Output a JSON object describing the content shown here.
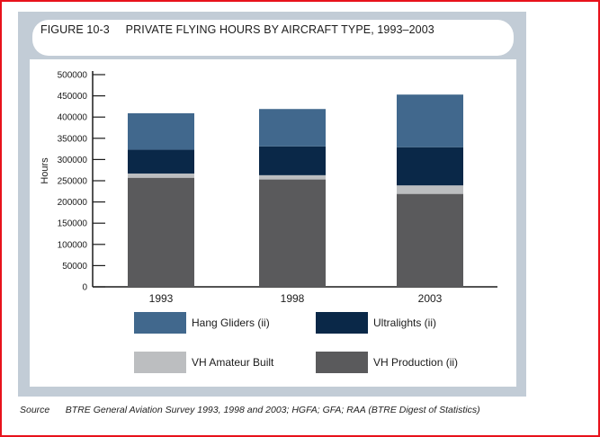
{
  "title": "FIGURE 10-3     PRIVATE FLYING HOURS BY AIRCRAFT TYPE, 1993–2003",
  "source": "Source      BTRE General Aviation Survey 1993, 1998 and 2003; HGFA; GFA; RAA (BTRE Digest of Statistics)",
  "colors": {
    "border": "#e8121c",
    "panel": "#c2ccd6",
    "hang_gliders": "#41688d",
    "ultralights": "#0a2848",
    "vh_amateur_built": "#bcbec0",
    "vh_production": "#5a5a5c"
  },
  "chart_data": {
    "type": "bar",
    "stacked": true,
    "categories": [
      "1993",
      "1998",
      "2003"
    ],
    "series": [
      {
        "name": "VH Production (ii)",
        "values": [
          257000,
          253000,
          219000
        ],
        "color": "#5a5a5c"
      },
      {
        "name": "VH Amateur Built",
        "values": [
          10000,
          10000,
          20000
        ],
        "color": "#bcbec0"
      },
      {
        "name": "Ultralights (ii)",
        "values": [
          56000,
          68000,
          90000
        ],
        "color": "#0a2848"
      },
      {
        "name": "Hang Gliders (ii)",
        "values": [
          86000,
          88000,
          124000
        ],
        "color": "#41688d"
      }
    ],
    "ylabel": "Hours",
    "ylim": [
      0,
      500000
    ],
    "yticks": [
      "500000",
      "450000",
      "400000",
      "350000",
      "300000",
      "250000",
      "200000",
      "150000",
      "100000",
      "50000",
      "0"
    ],
    "legend": [
      {
        "label": "Hang Gliders (ii)",
        "color": "#41688d"
      },
      {
        "label": "Ultralights (ii)",
        "color": "#0a2848"
      },
      {
        "label": "VH Amateur Built",
        "color": "#bcbec0"
      },
      {
        "label": "VH Production (ii)",
        "color": "#5a5a5c"
      }
    ],
    "legend_position": "bottom",
    "grid": false
  }
}
